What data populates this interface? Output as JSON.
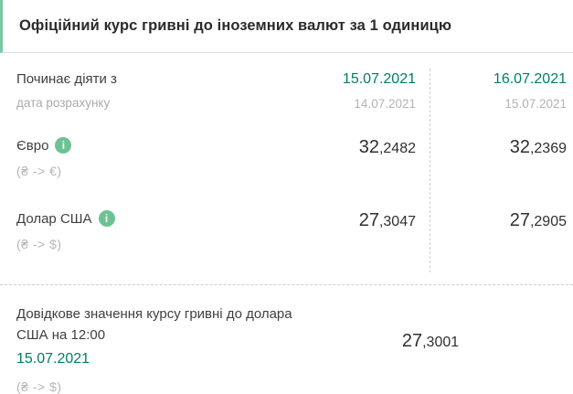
{
  "header": {
    "title": "Офіційний курс гривні до іноземних валют за 1 одиницю"
  },
  "table": {
    "info_icon": "i",
    "date_row": {
      "label": "Починає діяти з",
      "sublabel": "дата розрахунку",
      "columns": [
        {
          "effective_date": "15.07.2021",
          "calc_date": "14.07.2021"
        },
        {
          "effective_date": "16.07.2021",
          "calc_date": "15.07.2021"
        }
      ]
    },
    "currency_rows": [
      {
        "name": "Євро",
        "pair": "(₴ -> €)",
        "values": [
          {
            "int": "32",
            "frac": ",2482"
          },
          {
            "int": "32",
            "frac": ",2369"
          }
        ]
      },
      {
        "name": "Долар США",
        "pair": "(₴ -> $)",
        "values": [
          {
            "int": "27",
            "frac": ",3047"
          },
          {
            "int": "27",
            "frac": ",2905"
          }
        ]
      }
    ]
  },
  "reference": {
    "title": "Довідкове значення курсу гривні до долара США на 12:00",
    "date": "15.07.2021",
    "pair": "(₴ -> $)",
    "value": {
      "int": "27",
      "frac": ",3001"
    }
  },
  "colors": {
    "accent_green": "#007d64",
    "header_border_green": "#77c9a1",
    "info_icon_green": "#6cc391"
  }
}
